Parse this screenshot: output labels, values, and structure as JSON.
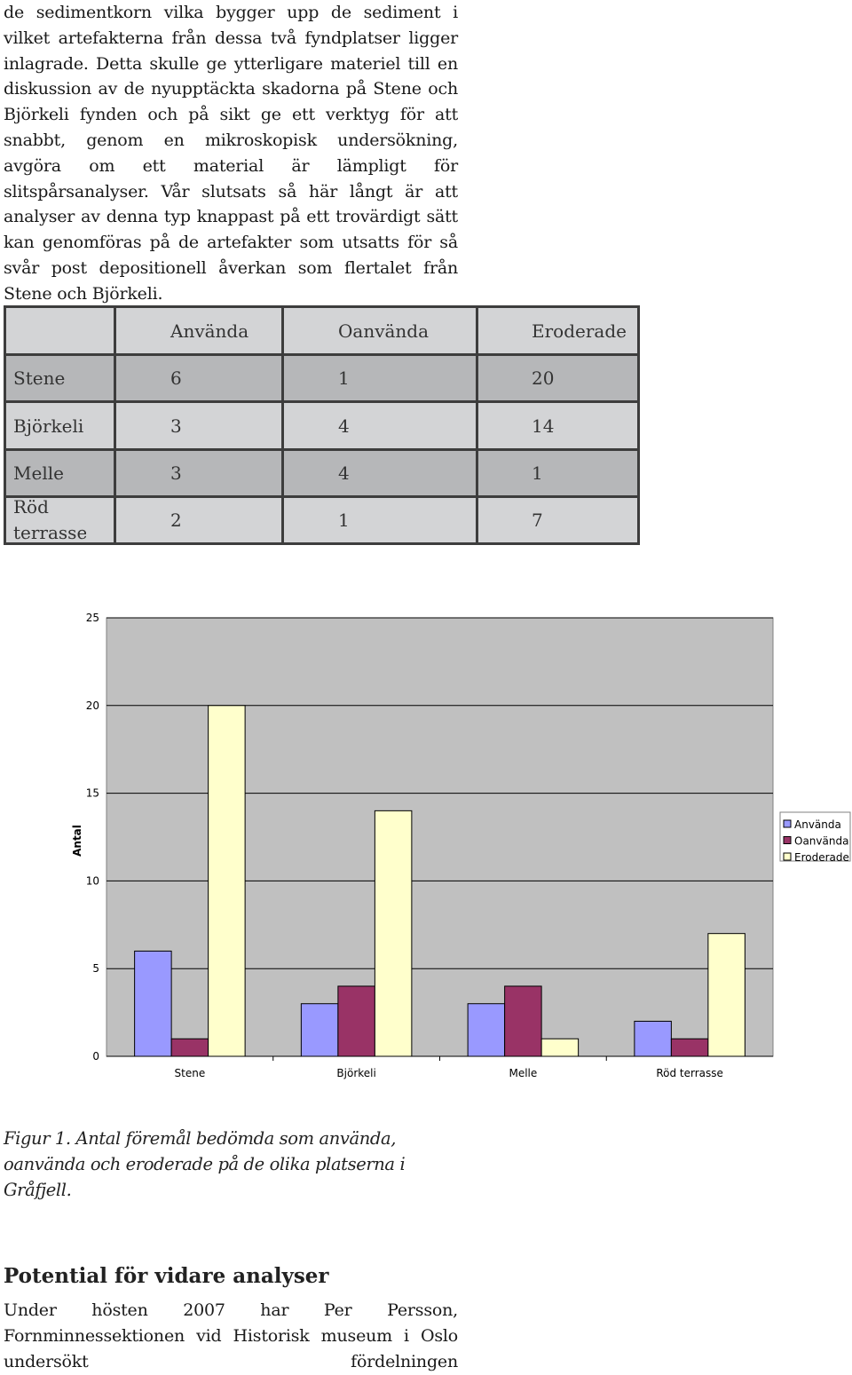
{
  "body_text": "de sedimentkorn vilka bygger upp de sediment i vilket artefakterna från dessa två fyndplatser ligger inlagrade. Detta skulle ge ytterligare materiel till en diskussion av de nyupptäckta skadorna på Stene och Björkeli fynden och på sikt ge ett verktyg för att snabbt, genom en mikroskopisk undersökning, avgöra om ett material är lämpligt för slitspårsanalyser. Vår slutsats så här långt är att analyser av denna typ knappast på ett trovärdigt sätt kan genomföras på de artefakter som utsatts för så svår post depositionell åverkan som flertalet från Stene och Björkeli.",
  "table": {
    "headers": [
      "",
      "Använda",
      "Oanvända",
      "Eroderade"
    ],
    "rows": [
      {
        "site": "Stene",
        "values": [
          "6",
          "1",
          "20"
        ]
      },
      {
        "site": "Björkeli",
        "values": [
          "3",
          "4",
          "14"
        ]
      },
      {
        "site": "Melle",
        "values": [
          "3",
          "4",
          "1"
        ]
      },
      {
        "site": "Röd terrasse",
        "values": [
          "2",
          "1",
          "7"
        ]
      }
    ]
  },
  "chart_data": {
    "type": "bar",
    "categories": [
      "Stene",
      "Björkeli",
      "Melle",
      "Röd terrasse"
    ],
    "series": [
      {
        "name": "Använda",
        "values": [
          6,
          3,
          3,
          2
        ],
        "color": "#9999ff"
      },
      {
        "name": "Oanvända",
        "values": [
          1,
          4,
          4,
          1
        ],
        "color": "#993366"
      },
      {
        "name": "Eroderade",
        "values": [
          20,
          14,
          1,
          7
        ],
        "color": "#ffffcc"
      }
    ],
    "ylabel": "Antal",
    "xlabel": "",
    "ylim": [
      0,
      25
    ],
    "yticks": [
      0,
      5,
      10,
      15,
      20,
      25
    ],
    "grid": true,
    "legend": "right",
    "plot_background": "#c0c0c0"
  },
  "caption": "Figur 1. Antal föremål bedömda som använda, oanvända och eroderade på de olika platserna i Gråfjell.",
  "section_heading": "Potential för vidare analyser",
  "section_text": "Under hösten 2007 har Per Persson, Fornminnessektionen vid Historisk museum i Oslo undersökt fördelningen"
}
